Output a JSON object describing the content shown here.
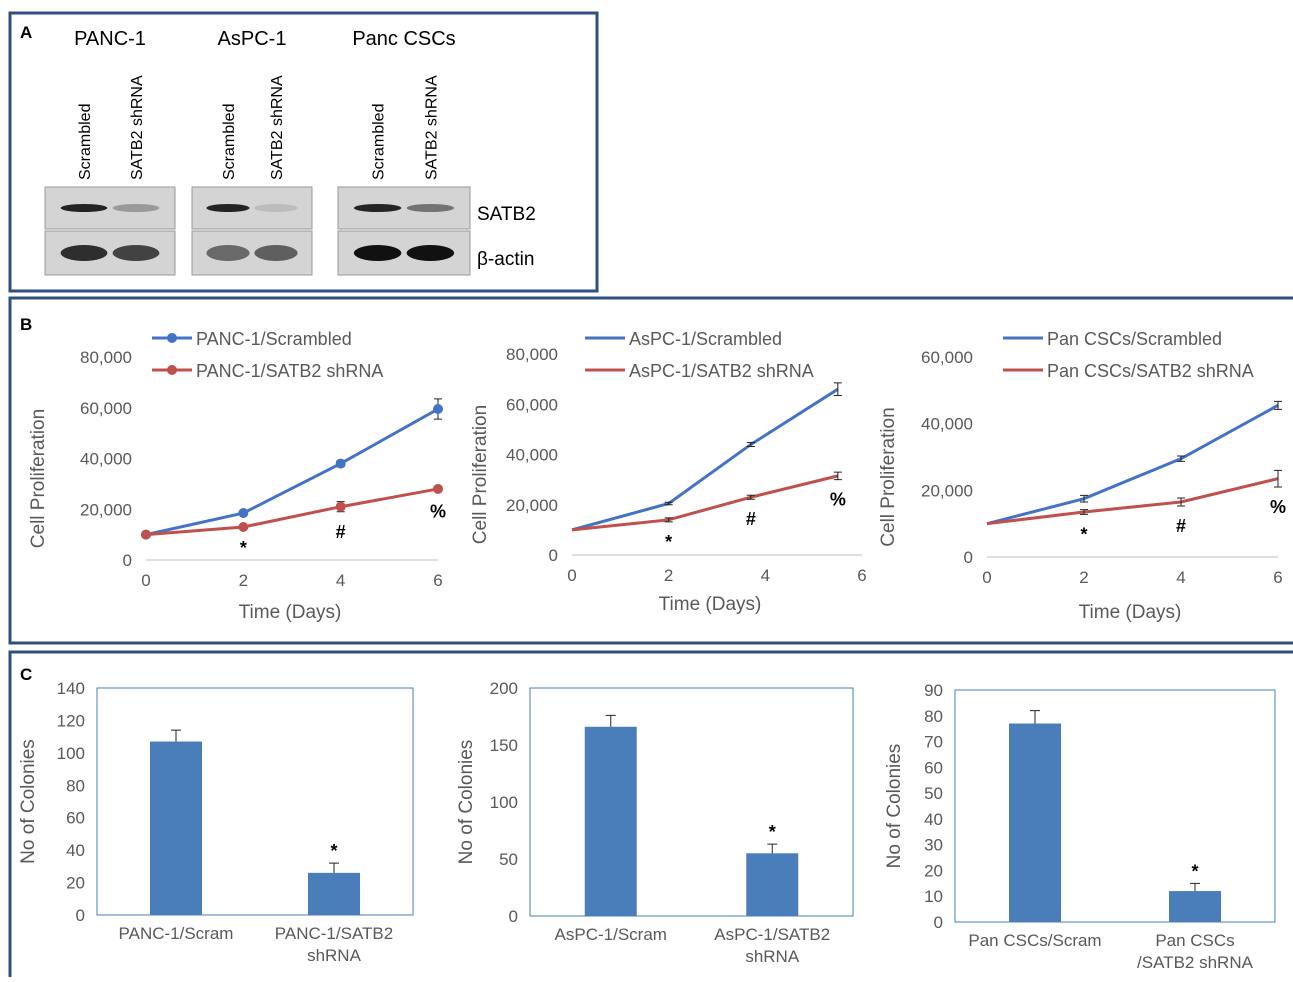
{
  "panel_labels": [
    "A",
    "B",
    "C"
  ],
  "panel_a": {
    "groups": [
      {
        "title": "PANC-1",
        "lanes": [
          "Scrambled",
          "SATB2 shRNA"
        ]
      },
      {
        "title": "AsPC-1",
        "lanes": [
          "Scrambled",
          "SATB2 shRNA"
        ]
      },
      {
        "title": "Panc CSCs",
        "lanes": [
          "Scrambled",
          "SATB2 shRNA"
        ]
      }
    ],
    "rows": [
      "SATB2",
      "β-actin"
    ]
  },
  "chart_data": [
    {
      "type": "line",
      "markers": true,
      "x": [
        0,
        2,
        4,
        6
      ],
      "xlim": [
        0,
        6
      ],
      "xticks": [
        0,
        2,
        4,
        6
      ],
      "ylim": [
        0,
        80000
      ],
      "yticks": [
        0,
        {
          "value": 20000,
          "label": "20,000"
        },
        {
          "value": 40000,
          "label": "40,000"
        },
        {
          "value": 60000,
          "label": "60,000"
        },
        {
          "value": 80000,
          "label": "80,000"
        }
      ],
      "xlabel": "Time (Days)",
      "ylabel": "Cell Proliferation",
      "annotations": [
        null,
        "*",
        "#",
        "%"
      ],
      "series": [
        {
          "name": "PANC-1/Scrambled",
          "color": "#4472c4",
          "values": [
            10000,
            18500,
            38000,
            59500
          ],
          "errors": [
            0,
            500,
            1200,
            4000
          ]
        },
        {
          "name": "PANC-1/SATB2 shRNA",
          "color": "#c0504d",
          "values": [
            10000,
            13000,
            21000,
            28000
          ],
          "errors": [
            0,
            300,
            2000,
            1000
          ]
        }
      ]
    },
    {
      "type": "line",
      "markers": false,
      "x": [
        0,
        2,
        3.7,
        5.5
      ],
      "xlim": [
        0,
        6
      ],
      "xticks": [
        0,
        2,
        4,
        6
      ],
      "ylim": [
        0,
        80000
      ],
      "yticks": [
        0,
        {
          "value": 20000,
          "label": "20,000"
        },
        {
          "value": 40000,
          "label": "40,000"
        },
        {
          "value": 60000,
          "label": "60,000"
        },
        {
          "value": 80000,
          "label": "80,000"
        }
      ],
      "xlabel": "Time (Days)",
      "ylabel": "Cell Proliferation",
      "annotations": [
        null,
        "*",
        "#",
        "%"
      ],
      "series": [
        {
          "name": "AsPC-1/Scrambled",
          "color": "#4472c4",
          "values": [
            10000,
            20500,
            44000,
            66000
          ],
          "errors": [
            0,
            500,
            800,
            2500
          ]
        },
        {
          "name": "AsPC-1/SATB2 shRNA",
          "color": "#c0504d",
          "values": [
            10000,
            14000,
            23000,
            31500
          ],
          "errors": [
            0,
            800,
            800,
            1500
          ]
        }
      ]
    },
    {
      "type": "line",
      "markers": false,
      "x": [
        0,
        2,
        4,
        6
      ],
      "xlim": [
        0,
        6
      ],
      "xticks": [
        0,
        2,
        4,
        6
      ],
      "ylim": [
        0,
        60000
      ],
      "yticks": [
        0,
        {
          "value": 20000,
          "label": "20,000"
        },
        {
          "value": 40000,
          "label": "40,000"
        },
        {
          "value": 60000,
          "label": "60,000"
        }
      ],
      "xlabel": "Time (Days)",
      "ylabel": "Cell Proliferation",
      "annotations": [
        null,
        "*",
        "#",
        "%"
      ],
      "series": [
        {
          "name": "Pan CSCs/Scrambled",
          "color": "#4472c4",
          "values": [
            10000,
            17500,
            29500,
            45500
          ],
          "errors": [
            0,
            1000,
            800,
            1200
          ]
        },
        {
          "name": "Pan CSCs/SATB2 shRNA",
          "color": "#c0504d",
          "values": [
            10000,
            13500,
            16500,
            23500
          ],
          "errors": [
            0,
            700,
            1200,
            2500
          ]
        }
      ]
    },
    {
      "type": "bar",
      "color": "#4a7ebb",
      "categories": [
        "PANC-1/Scram",
        "PANC-1/SATB2\nshRNA"
      ],
      "values": [
        107,
        26
      ],
      "errors": [
        7,
        6
      ],
      "annotations": [
        null,
        "*"
      ],
      "ylim": [
        0,
        140
      ],
      "yticks": [
        0,
        20,
        40,
        60,
        80,
        100,
        120,
        140
      ],
      "ylabel": "No of Colonies"
    },
    {
      "type": "bar",
      "color": "#4a7ebb",
      "categories": [
        "AsPC-1/Scram",
        "AsPC-1/SATB2\nshRNA"
      ],
      "values": [
        166,
        55
      ],
      "errors": [
        10,
        8
      ],
      "annotations": [
        null,
        "*"
      ],
      "ylim": [
        0,
        200
      ],
      "yticks": [
        0,
        50,
        100,
        150,
        200
      ],
      "ylabel": "No of Colonies"
    },
    {
      "type": "bar",
      "color": "#4a7ebb",
      "categories": [
        "Pan CSCs/Scram",
        "Pan CSCs\n/SATB2 shRNA"
      ],
      "values": [
        77,
        12
      ],
      "errors": [
        5,
        3
      ],
      "annotations": [
        null,
        "*"
      ],
      "ylim": [
        0,
        90
      ],
      "yticks": [
        0,
        10,
        20,
        30,
        40,
        50,
        60,
        70,
        80,
        90
      ],
      "ylabel": "No of Colonies"
    }
  ]
}
